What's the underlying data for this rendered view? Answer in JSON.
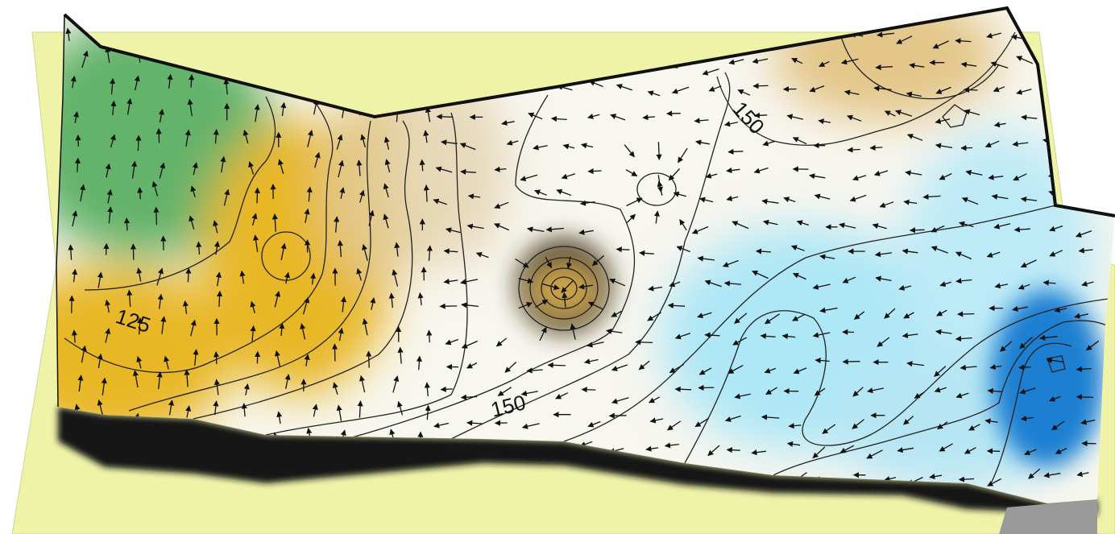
{
  "map": {
    "contour_labels": [
      {
        "text": "125"
      },
      {
        "text": "150"
      },
      {
        "text": "150"
      }
    ],
    "colors": {
      "base_plane": "#eef3a8",
      "low_green": "#63b36b",
      "mid_yellow": "#e8b726",
      "mid_tan": "#d7c49a",
      "level_white": "#f7f6ef",
      "cyan": "#aee7f6",
      "deep_blue": "#1b7fd1",
      "dark_pit": "#3b2a10",
      "contour_line": "#222222",
      "arrow": "#111111"
    }
  }
}
